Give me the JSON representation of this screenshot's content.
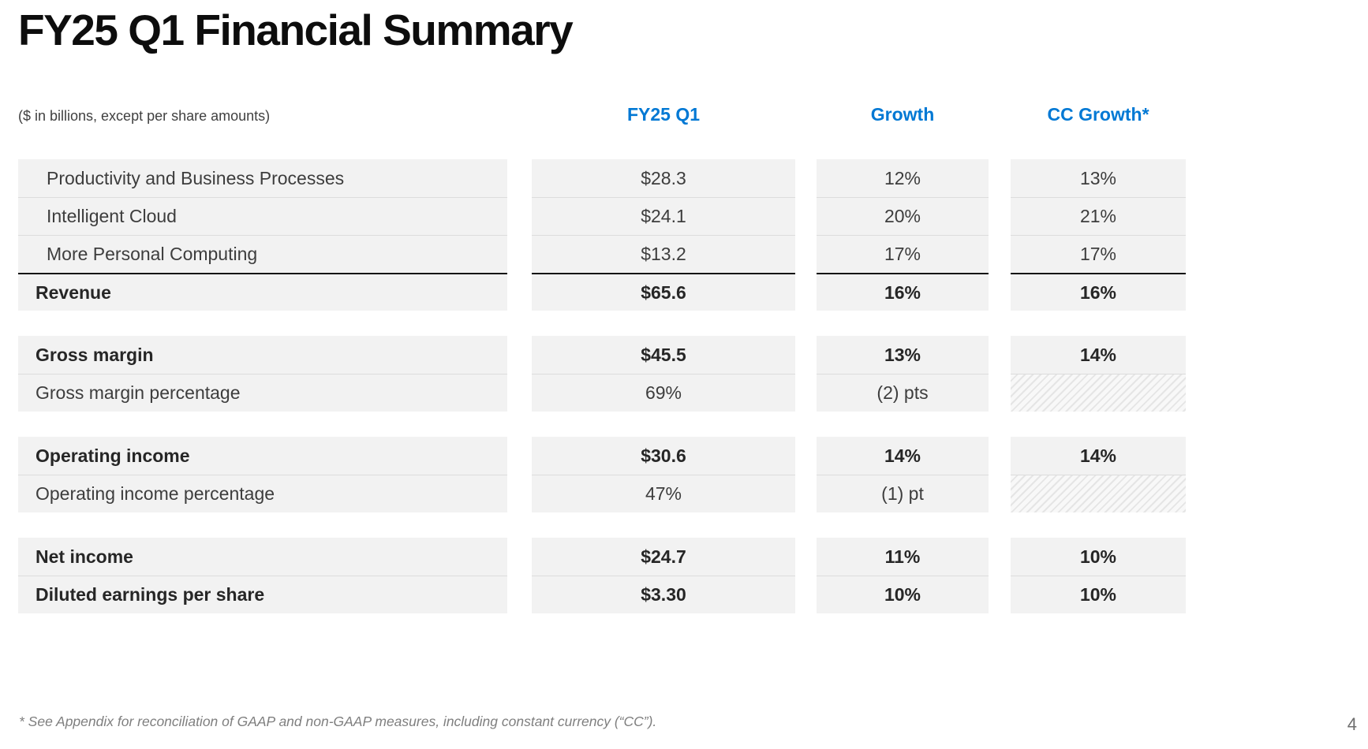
{
  "title": "FY25 Q1 Financial Summary",
  "units_note": "($ in billions, except per share amounts)",
  "columns": [
    "FY25 Q1",
    "Growth",
    "CC Growth*"
  ],
  "colors": {
    "accent_blue": "#0078D4",
    "row_background": "#F2F2F2",
    "row_divider": "#DCDCDC",
    "sum_line": "#141414",
    "emphasis_text": "#262626",
    "regular_text": "#3D3D3D",
    "muted_text": "#7F7F7F"
  },
  "table": {
    "groups": [
      {
        "rows": [
          {
            "label": "Productivity and Business Processes",
            "emphasis": false,
            "indent": true,
            "sum_border": false,
            "values": [
              "$28.3",
              "12%",
              "13%"
            ],
            "hatched": []
          },
          {
            "label": "Intelligent Cloud",
            "emphasis": false,
            "indent": true,
            "sum_border": false,
            "values": [
              "$24.1",
              "20%",
              "21%"
            ],
            "hatched": []
          },
          {
            "label": "More Personal Computing",
            "emphasis": false,
            "indent": true,
            "sum_border": false,
            "values": [
              "$13.2",
              "17%",
              "17%"
            ],
            "hatched": []
          },
          {
            "label": "Revenue",
            "emphasis": true,
            "indent": false,
            "sum_border": true,
            "values": [
              "$65.6",
              "16%",
              "16%"
            ],
            "hatched": []
          }
        ]
      },
      {
        "rows": [
          {
            "label": "Gross margin",
            "emphasis": true,
            "indent": false,
            "sum_border": false,
            "values": [
              "$45.5",
              "13%",
              "14%"
            ],
            "hatched": []
          },
          {
            "label": "Gross margin percentage",
            "emphasis": false,
            "indent": false,
            "sum_border": false,
            "values": [
              "69%",
              "(2) pts",
              ""
            ],
            "hatched": [
              2
            ]
          }
        ]
      },
      {
        "rows": [
          {
            "label": "Operating income",
            "emphasis": true,
            "indent": false,
            "sum_border": false,
            "values": [
              "$30.6",
              "14%",
              "14%"
            ],
            "hatched": []
          },
          {
            "label": "Operating income percentage",
            "emphasis": false,
            "indent": false,
            "sum_border": false,
            "values": [
              "47%",
              "(1) pt",
              ""
            ],
            "hatched": [
              2
            ]
          }
        ]
      },
      {
        "rows": [
          {
            "label": "Net income",
            "emphasis": true,
            "indent": false,
            "sum_border": false,
            "values": [
              "$24.7",
              "11%",
              "10%"
            ],
            "hatched": []
          },
          {
            "label": "Diluted earnings per share",
            "emphasis": true,
            "indent": false,
            "sum_border": false,
            "values": [
              "$3.30",
              "10%",
              "10%"
            ],
            "hatched": []
          }
        ]
      }
    ]
  },
  "footnote": "* See Appendix for reconciliation of GAAP and non-GAAP measures, including constant currency (“CC”).",
  "page_number": "4"
}
